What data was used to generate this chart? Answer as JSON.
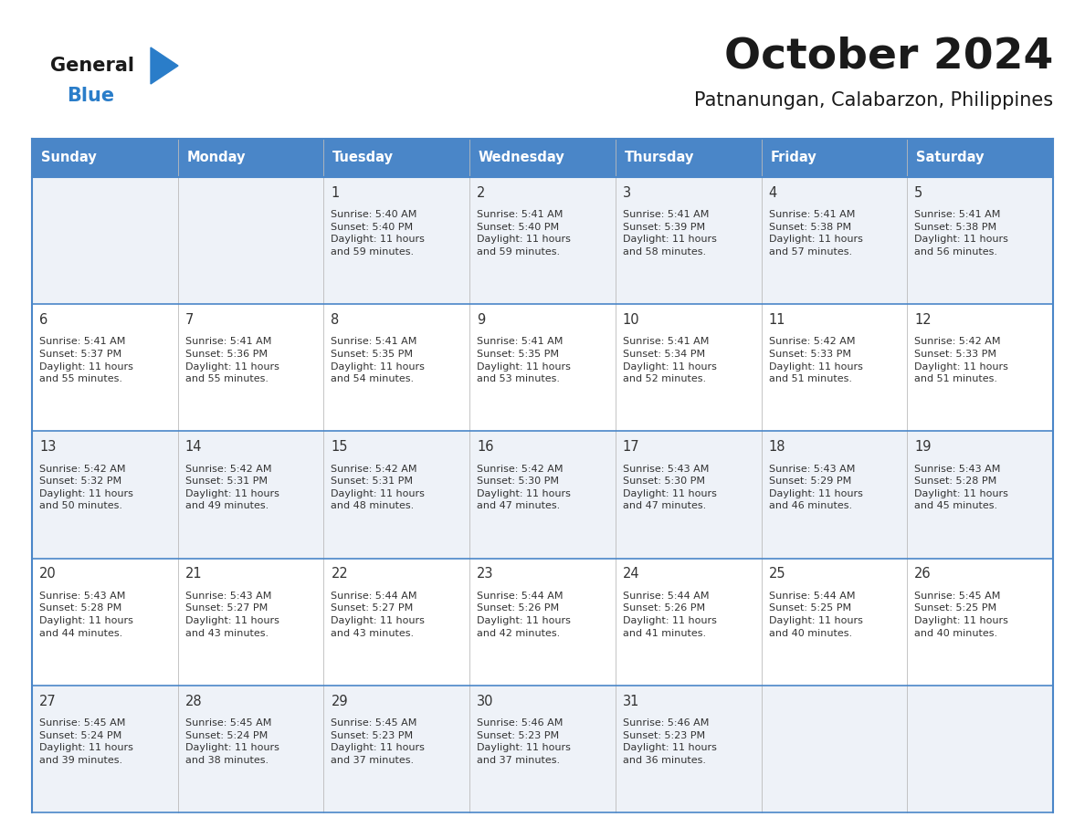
{
  "title": "October 2024",
  "subtitle": "Patnanungan, Calabarzon, Philippines",
  "days_of_week": [
    "Sunday",
    "Monday",
    "Tuesday",
    "Wednesday",
    "Thursday",
    "Friday",
    "Saturday"
  ],
  "header_bg_color": "#4a86c8",
  "header_text_color": "#ffffff",
  "cell_bg_even": "#eef2f8",
  "cell_bg_odd": "#ffffff",
  "border_color": "#4a86c8",
  "text_color": "#333333",
  "title_color": "#1a1a1a",
  "calendar_data": [
    [
      "",
      "",
      "1\nSunrise: 5:40 AM\nSunset: 5:40 PM\nDaylight: 11 hours\nand 59 minutes.",
      "2\nSunrise: 5:41 AM\nSunset: 5:40 PM\nDaylight: 11 hours\nand 59 minutes.",
      "3\nSunrise: 5:41 AM\nSunset: 5:39 PM\nDaylight: 11 hours\nand 58 minutes.",
      "4\nSunrise: 5:41 AM\nSunset: 5:38 PM\nDaylight: 11 hours\nand 57 minutes.",
      "5\nSunrise: 5:41 AM\nSunset: 5:38 PM\nDaylight: 11 hours\nand 56 minutes."
    ],
    [
      "6\nSunrise: 5:41 AM\nSunset: 5:37 PM\nDaylight: 11 hours\nand 55 minutes.",
      "7\nSunrise: 5:41 AM\nSunset: 5:36 PM\nDaylight: 11 hours\nand 55 minutes.",
      "8\nSunrise: 5:41 AM\nSunset: 5:35 PM\nDaylight: 11 hours\nand 54 minutes.",
      "9\nSunrise: 5:41 AM\nSunset: 5:35 PM\nDaylight: 11 hours\nand 53 minutes.",
      "10\nSunrise: 5:41 AM\nSunset: 5:34 PM\nDaylight: 11 hours\nand 52 minutes.",
      "11\nSunrise: 5:42 AM\nSunset: 5:33 PM\nDaylight: 11 hours\nand 51 minutes.",
      "12\nSunrise: 5:42 AM\nSunset: 5:33 PM\nDaylight: 11 hours\nand 51 minutes."
    ],
    [
      "13\nSunrise: 5:42 AM\nSunset: 5:32 PM\nDaylight: 11 hours\nand 50 minutes.",
      "14\nSunrise: 5:42 AM\nSunset: 5:31 PM\nDaylight: 11 hours\nand 49 minutes.",
      "15\nSunrise: 5:42 AM\nSunset: 5:31 PM\nDaylight: 11 hours\nand 48 minutes.",
      "16\nSunrise: 5:42 AM\nSunset: 5:30 PM\nDaylight: 11 hours\nand 47 minutes.",
      "17\nSunrise: 5:43 AM\nSunset: 5:30 PM\nDaylight: 11 hours\nand 47 minutes.",
      "18\nSunrise: 5:43 AM\nSunset: 5:29 PM\nDaylight: 11 hours\nand 46 minutes.",
      "19\nSunrise: 5:43 AM\nSunset: 5:28 PM\nDaylight: 11 hours\nand 45 minutes."
    ],
    [
      "20\nSunrise: 5:43 AM\nSunset: 5:28 PM\nDaylight: 11 hours\nand 44 minutes.",
      "21\nSunrise: 5:43 AM\nSunset: 5:27 PM\nDaylight: 11 hours\nand 43 minutes.",
      "22\nSunrise: 5:44 AM\nSunset: 5:27 PM\nDaylight: 11 hours\nand 43 minutes.",
      "23\nSunrise: 5:44 AM\nSunset: 5:26 PM\nDaylight: 11 hours\nand 42 minutes.",
      "24\nSunrise: 5:44 AM\nSunset: 5:26 PM\nDaylight: 11 hours\nand 41 minutes.",
      "25\nSunrise: 5:44 AM\nSunset: 5:25 PM\nDaylight: 11 hours\nand 40 minutes.",
      "26\nSunrise: 5:45 AM\nSunset: 5:25 PM\nDaylight: 11 hours\nand 40 minutes."
    ],
    [
      "27\nSunrise: 5:45 AM\nSunset: 5:24 PM\nDaylight: 11 hours\nand 39 minutes.",
      "28\nSunrise: 5:45 AM\nSunset: 5:24 PM\nDaylight: 11 hours\nand 38 minutes.",
      "29\nSunrise: 5:45 AM\nSunset: 5:23 PM\nDaylight: 11 hours\nand 37 minutes.",
      "30\nSunrise: 5:46 AM\nSunset: 5:23 PM\nDaylight: 11 hours\nand 37 minutes.",
      "31\nSunrise: 5:46 AM\nSunset: 5:23 PM\nDaylight: 11 hours\nand 36 minutes.",
      "",
      ""
    ]
  ]
}
